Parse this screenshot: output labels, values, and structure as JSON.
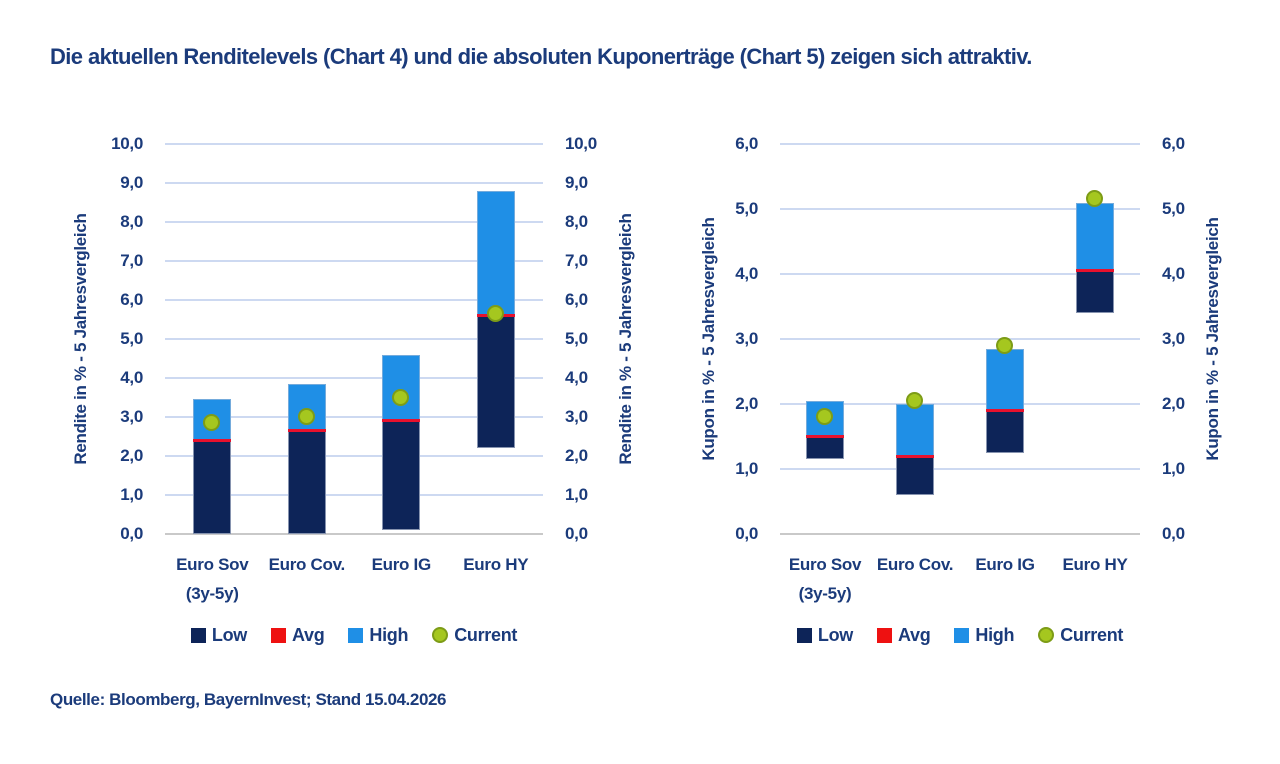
{
  "title": "Die aktuellen Renditelevels (Chart 4) und die absoluten Kuponerträge (Chart 5) zeigen sich attraktiv.",
  "source": "Quelle: Bloomberg, BayernInvest; Stand 15.04.2026",
  "colors": {
    "navy_text": "#1b3b7b",
    "bar_low": "#0d2458",
    "bar_high": "#1f8fe6",
    "avg_line": "#e8112d",
    "current_fill": "#a5c71f",
    "current_border": "#7d9c17",
    "gridline": "#cdd9f1",
    "baseline": "#c9c9c9"
  },
  "legend": {
    "items": [
      {
        "key": "low",
        "label": "Low",
        "shape": "square",
        "color": "#0d2458"
      },
      {
        "key": "avg",
        "label": "Avg",
        "shape": "square",
        "color": "#ee1111"
      },
      {
        "key": "high",
        "label": "High",
        "shape": "square",
        "color": "#1f8fe6"
      },
      {
        "key": "current",
        "label": "Current",
        "shape": "circle",
        "color": "#a5c71f"
      }
    ]
  },
  "chart_data": [
    {
      "type": "bar",
      "subtype": "floating-range-bar",
      "name": "Chart 4 - Renditelevels",
      "ylabel": "Rendite in % - 5 Jahresvergleich",
      "ylim": [
        0,
        10
      ],
      "ytick_step": 1,
      "ytick_labels": [
        "0,0",
        "1,0",
        "2,0",
        "3,0",
        "4,0",
        "5,0",
        "6,0",
        "7,0",
        "8,0",
        "9,0",
        "10,0"
      ],
      "grid": true,
      "legend_position": "bottom",
      "categories": [
        "Euro Sov\n(3y-5y)",
        "Euro Cov.",
        "Euro IG",
        "Euro HY"
      ],
      "series": [
        {
          "name": "Low",
          "values": [
            0.0,
            0.0,
            0.1,
            2.2
          ]
        },
        {
          "name": "Avg",
          "values": [
            2.4,
            2.65,
            2.9,
            5.6
          ]
        },
        {
          "name": "High",
          "values": [
            3.45,
            3.85,
            4.6,
            8.8
          ]
        },
        {
          "name": "Current",
          "values": [
            2.85,
            3.0,
            3.5,
            5.65
          ]
        }
      ]
    },
    {
      "type": "bar",
      "subtype": "floating-range-bar",
      "name": "Chart 5 - Kuponerträge",
      "ylabel": "Kupon in % - 5 Jahresvergleich",
      "ylim": [
        0,
        6
      ],
      "ytick_step": 1,
      "ytick_labels": [
        "0,0",
        "1,0",
        "2,0",
        "3,0",
        "4,0",
        "5,0",
        "6,0"
      ],
      "grid": true,
      "legend_position": "bottom",
      "categories": [
        "Euro Sov\n(3y-5y)",
        "Euro Cov.",
        "Euro IG",
        "Euro HY"
      ],
      "series": [
        {
          "name": "Low",
          "values": [
            1.15,
            0.6,
            1.25,
            3.4
          ]
        },
        {
          "name": "Avg",
          "values": [
            1.5,
            1.2,
            1.9,
            4.05
          ]
        },
        {
          "name": "High",
          "values": [
            2.05,
            2.0,
            2.85,
            5.1
          ]
        },
        {
          "name": "Current",
          "values": [
            1.8,
            2.05,
            2.9,
            5.15
          ]
        }
      ]
    }
  ]
}
